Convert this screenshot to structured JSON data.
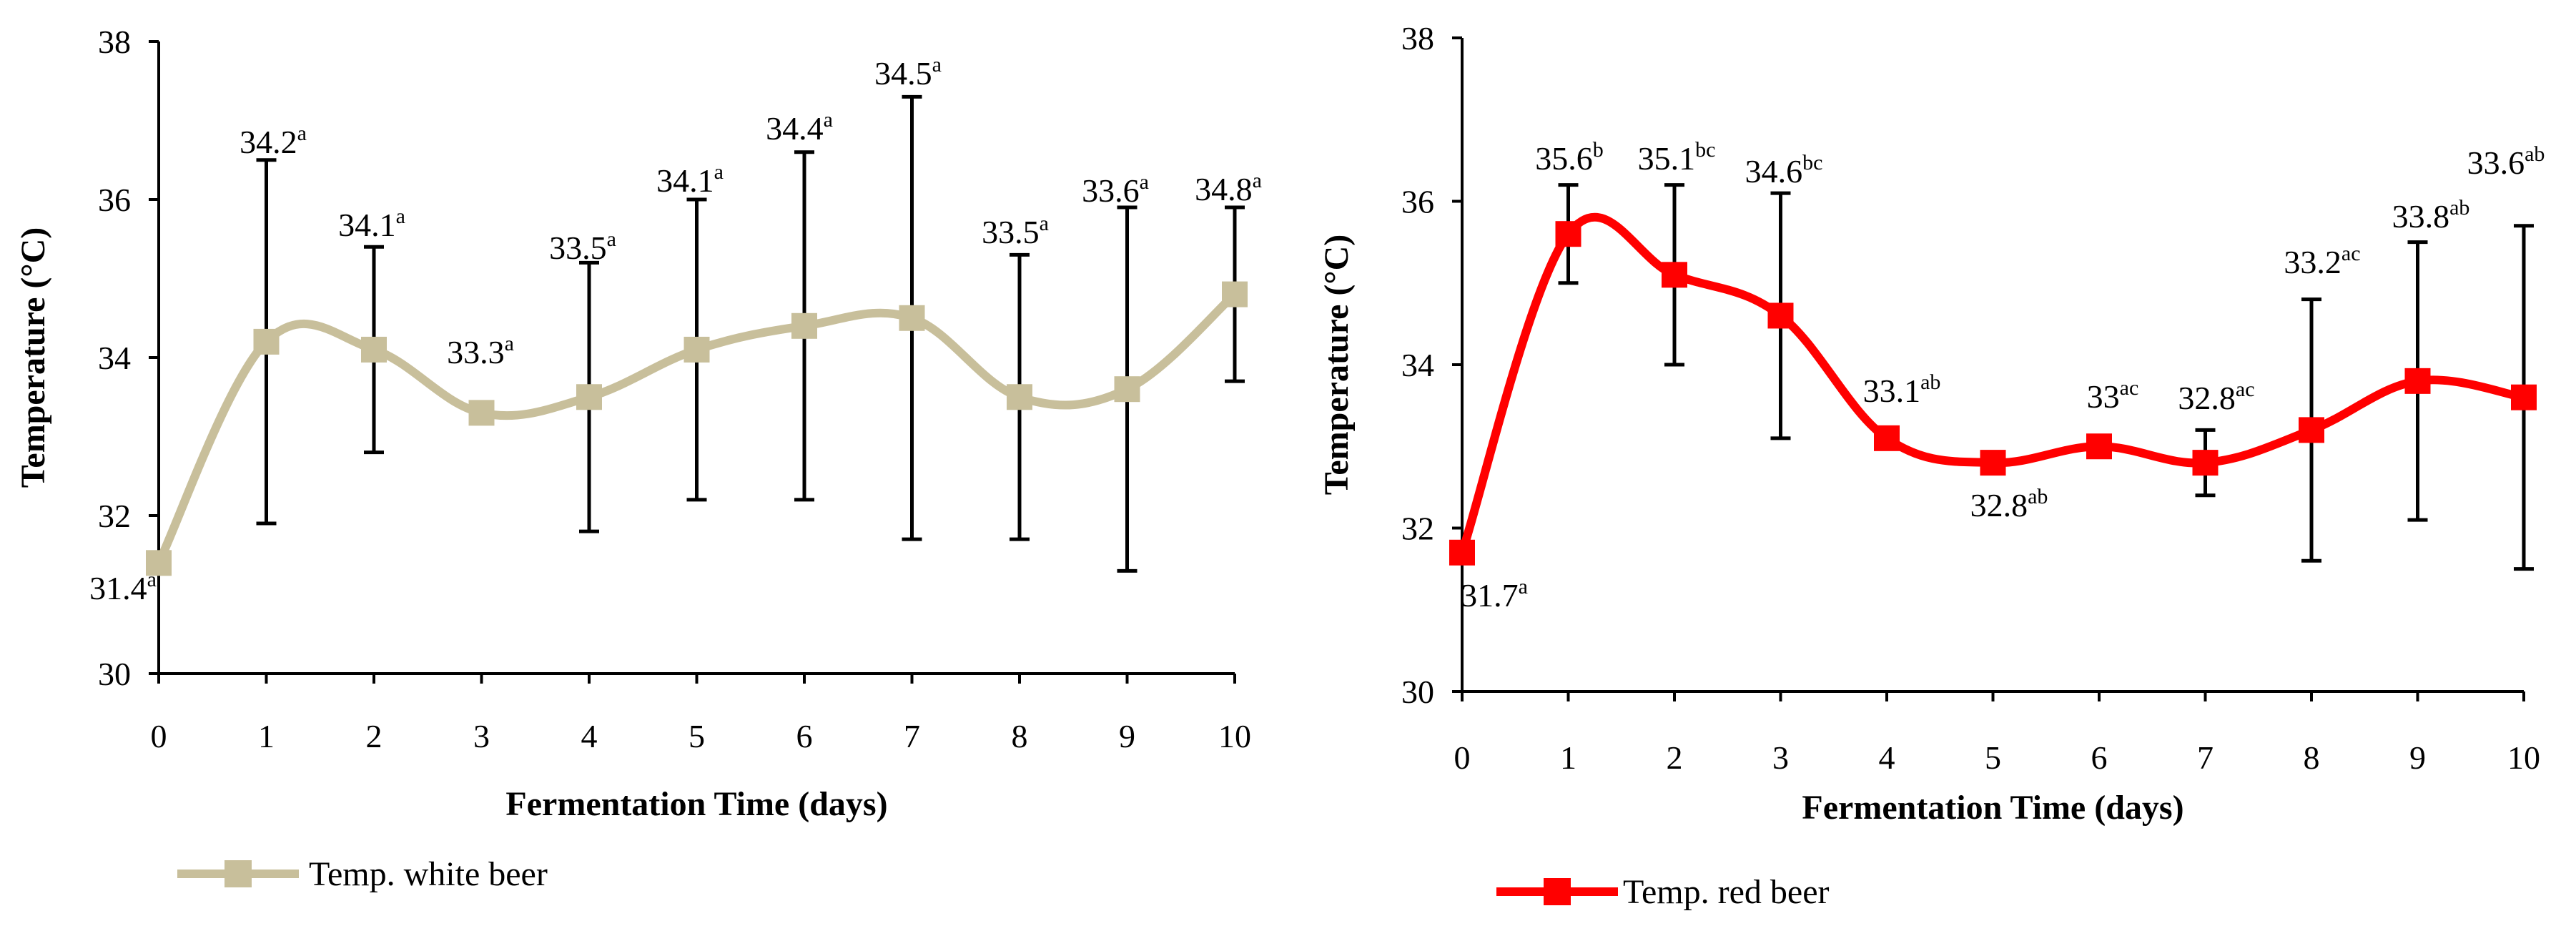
{
  "chart_data": [
    {
      "type": "line",
      "title": "",
      "xlabel": "Fermentation Time (days)",
      "ylabel": "Temperature (°C)",
      "xlim": [
        0,
        10
      ],
      "ylim": [
        30,
        38
      ],
      "yticks": [
        "30",
        "32",
        "34",
        "36",
        "38"
      ],
      "xticks": [
        "0",
        "1",
        "2",
        "3",
        "4",
        "5",
        "6",
        "7",
        "8",
        "9",
        "10"
      ],
      "color": "#C8BF9B",
      "series": [
        {
          "name": "Temp. white beer",
          "x": [
            0,
            1,
            2,
            3,
            4,
            5,
            6,
            7,
            8,
            9,
            10
          ],
          "values": [
            31.4,
            34.2,
            34.1,
            33.3,
            33.5,
            34.1,
            34.4,
            34.5,
            33.5,
            33.6,
            34.8
          ],
          "error": [
            0,
            2.3,
            1.3,
            0,
            1.7,
            1.9,
            2.2,
            2.8,
            1.8,
            2.3,
            1.1
          ],
          "labels": [
            {
              "value": "31.4",
              "sup": "a"
            },
            {
              "value": "34.2",
              "sup": "a"
            },
            {
              "value": "34.1",
              "sup": "a"
            },
            {
              "value": "33.3",
              "sup": "a"
            },
            {
              "value": "33.5",
              "sup": "a"
            },
            {
              "value": "34.1",
              "sup": "a"
            },
            {
              "value": "34.4",
              "sup": "a"
            },
            {
              "value": "34.5",
              "sup": "a"
            },
            {
              "value": "33.5",
              "sup": "a"
            },
            {
              "value": "33.6",
              "sup": "a"
            },
            {
              "value": "34.8",
              "sup": "a"
            }
          ]
        }
      ],
      "legend": {
        "label": "Temp. white beer",
        "position": "bottom-left"
      }
    },
    {
      "type": "line",
      "title": "",
      "xlabel": "Fermentation Time (days)",
      "ylabel": "Temperature (°C)",
      "xlim": [
        0,
        10
      ],
      "ylim": [
        30,
        38
      ],
      "yticks": [
        "30",
        "32",
        "34",
        "36",
        "38"
      ],
      "xticks": [
        "0",
        "1",
        "2",
        "3",
        "4",
        "5",
        "6",
        "7",
        "8",
        "9",
        "10"
      ],
      "color": "#FF0000",
      "series": [
        {
          "name": "Temp. red beer",
          "x": [
            0,
            1,
            2,
            3,
            4,
            5,
            6,
            7,
            8,
            9,
            10
          ],
          "values": [
            31.7,
            35.6,
            35.1,
            34.6,
            33.1,
            32.8,
            33.0,
            32.8,
            33.2,
            33.8,
            33.6
          ],
          "error": [
            0,
            0.6,
            1.1,
            1.5,
            0,
            0,
            0,
            0.4,
            1.6,
            1.7,
            2.1
          ],
          "labels": [
            {
              "value": "31.7",
              "sup": "a"
            },
            {
              "value": "35.6",
              "sup": "b"
            },
            {
              "value": "35.1",
              "sup": "bc"
            },
            {
              "value": "34.6",
              "sup": "bc"
            },
            {
              "value": "33.1",
              "sup": "ab"
            },
            {
              "value": "32.8",
              "sup": "ab"
            },
            {
              "value": "33",
              "sup": "ac"
            },
            {
              "value": "32.8",
              "sup": "ac"
            },
            {
              "value": "33.2",
              "sup": "ac"
            },
            {
              "value": "33.8",
              "sup": "ab"
            },
            {
              "value": "33.6",
              "sup": "ab"
            }
          ]
        }
      ],
      "legend": {
        "label": "Temp. red beer",
        "position": "bottom-left"
      }
    }
  ]
}
